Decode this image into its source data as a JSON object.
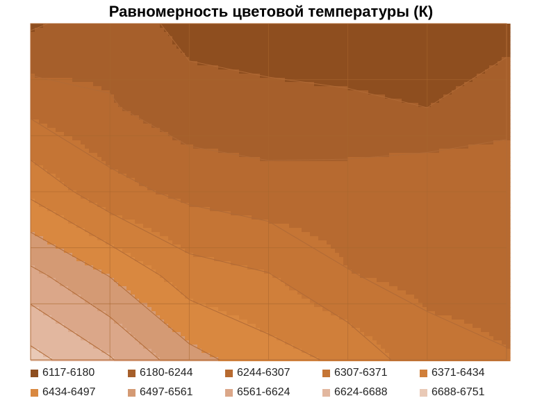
{
  "chart_data": {
    "type": "heatmap",
    "subtype": "contour",
    "title": "Равномерность цветовой температуры (К)",
    "xlabel": "",
    "ylabel": "",
    "grid": true,
    "legend_position": "bottom",
    "grid_size": {
      "cols": 7,
      "rows": 5
    },
    "unit": "K",
    "values": [
      [
        6170,
        6215,
        6160,
        6145,
        6130,
        6130,
        6160
      ],
      [
        6290,
        6250,
        6205,
        6200,
        6195,
        6180,
        6210
      ],
      [
        6420,
        6330,
        6290,
        6270,
        6275,
        6300,
        6300
      ],
      [
        6580,
        6495,
        6400,
        6375,
        6310,
        6290,
        6290
      ],
      [
        6710,
        6630,
        6520,
        6460,
        6420,
        6330,
        6310
      ]
    ],
    "bands": [
      {
        "label": "6117-6180",
        "min": 6117,
        "max": 6180,
        "color": "#8e4e1f"
      },
      {
        "label": "6180-6244",
        "min": 6180,
        "max": 6244,
        "color": "#a65f2b"
      },
      {
        "label": "6244-6307",
        "min": 6244,
        "max": 6307,
        "color": "#b76a30"
      },
      {
        "label": "6307-6371",
        "min": 6307,
        "max": 6371,
        "color": "#c57535"
      },
      {
        "label": "6371-6434",
        "min": 6371,
        "max": 6434,
        "color": "#d07f3a"
      },
      {
        "label": "6434-6497",
        "min": 6434,
        "max": 6497,
        "color": "#d98840"
      },
      {
        "label": "6497-6561",
        "min": 6497,
        "max": 6561,
        "color": "#d49a74"
      },
      {
        "label": "6561-6624",
        "min": 6561,
        "max": 6624,
        "color": "#dba789"
      },
      {
        "label": "6624-6688",
        "min": 6624,
        "max": 6688,
        "color": "#e2b79f"
      },
      {
        "label": "6688-6751",
        "min": 6688,
        "max": 6751,
        "color": "#e9c9b6"
      }
    ],
    "line_color": "#b06a36"
  }
}
